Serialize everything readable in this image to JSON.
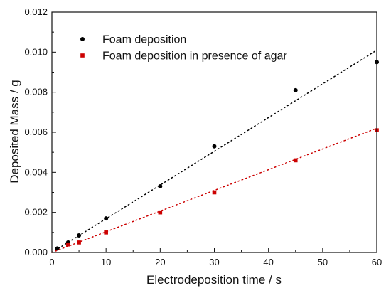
{
  "chart_data": {
    "type": "scatter",
    "title": "",
    "xlabel": "Electrodeposition time / s",
    "ylabel": "Deposited Mass / g",
    "xlim": [
      0,
      60
    ],
    "ylim": [
      0,
      0.012
    ],
    "x_ticks": [
      0,
      10,
      20,
      30,
      40,
      50,
      60
    ],
    "y_ticks": [
      0.0,
      0.002,
      0.004,
      0.006,
      0.008,
      0.01,
      0.012
    ],
    "x_tick_labels": [
      "0",
      "10",
      "20",
      "30",
      "40",
      "50",
      "60"
    ],
    "y_tick_labels": [
      "0.000",
      "0.002",
      "0.004",
      "0.006",
      "0.008",
      "0.010",
      "0.012"
    ],
    "grid": false,
    "legend_position": "top-left",
    "series": [
      {
        "name": "Foam deposition",
        "marker": "circle",
        "color": "#000000",
        "x": [
          1,
          3,
          5,
          10,
          20,
          30,
          45,
          60
        ],
        "y": [
          0.0002,
          0.0005,
          0.00085,
          0.0017,
          0.0033,
          0.0053,
          0.0081,
          0.0095
        ],
        "trend": {
          "style": "dotted",
          "x": [
            0,
            60
          ],
          "y": [
            0.0,
            0.0101
          ]
        }
      },
      {
        "name": "Foam deposition in presence of agar",
        "marker": "square",
        "color": "#cc0000",
        "x": [
          3,
          5,
          10,
          20,
          30,
          45,
          60
        ],
        "y": [
          0.0004,
          0.0005,
          0.001,
          0.002,
          0.003,
          0.0046,
          0.0061
        ],
        "trend": {
          "style": "dotted",
          "x": [
            0,
            60
          ],
          "y": [
            0.0,
            0.0062
          ]
        }
      }
    ]
  }
}
